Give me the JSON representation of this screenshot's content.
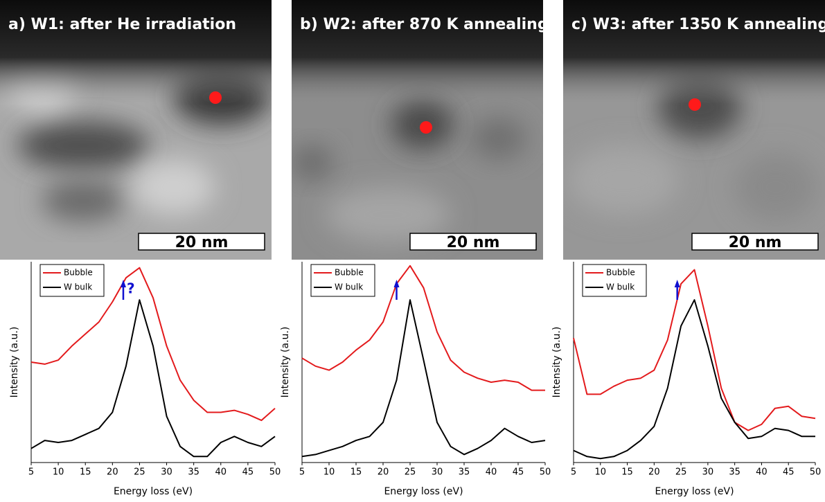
{
  "chart_data": [
    {
      "type": "line",
      "title": "a) W1: after He irradiation",
      "scale_bar": "20 nm",
      "annotation": "?",
      "x_label": "Energy loss (eV)",
      "y_label": "Intensity (a.u.)",
      "legend": "upper left",
      "x": [
        5,
        7.5,
        10,
        12.5,
        15,
        17.5,
        20,
        22.5,
        25,
        27.5,
        30,
        32.5,
        35,
        37.5,
        40,
        42.5,
        45,
        47.5,
        50
      ],
      "xlim": [
        5,
        50
      ],
      "xticks": [
        5,
        10,
        15,
        20,
        25,
        30,
        35,
        40,
        45,
        50
      ],
      "ylim": [
        0,
        1
      ],
      "series": [
        {
          "name": "Bubble",
          "color": "#e31a1c",
          "values": [
            0.5,
            0.49,
            0.51,
            0.58,
            0.64,
            0.7,
            0.8,
            0.92,
            0.97,
            0.82,
            0.58,
            0.41,
            0.31,
            0.25,
            0.25,
            0.26,
            0.24,
            0.21,
            0.27
          ]
        },
        {
          "name": "W bulk",
          "color": "#000000",
          "values": [
            0.07,
            0.11,
            0.1,
            0.11,
            0.14,
            0.17,
            0.25,
            0.48,
            0.81,
            0.58,
            0.23,
            0.08,
            0.03,
            0.03,
            0.1,
            0.13,
            0.1,
            0.08,
            0.13
          ]
        }
      ]
    },
    {
      "type": "line",
      "title": "b) W2: after 870 K annealing",
      "scale_bar": "20 nm",
      "x_label": "Energy loss (eV)",
      "y_label": "Intensity (a.u.)",
      "legend": "upper left",
      "x": [
        5,
        7.5,
        10,
        12.5,
        15,
        17.5,
        20,
        22.5,
        25,
        27.5,
        30,
        32.5,
        35,
        37.5,
        40,
        42.5,
        45,
        47.5,
        50
      ],
      "xlim": [
        5,
        50
      ],
      "xticks": [
        5,
        10,
        15,
        20,
        25,
        30,
        35,
        40,
        45,
        50
      ],
      "ylim": [
        0,
        1
      ],
      "series": [
        {
          "name": "Bubble",
          "color": "#e31a1c",
          "values": [
            0.52,
            0.48,
            0.46,
            0.5,
            0.56,
            0.61,
            0.7,
            0.89,
            0.98,
            0.87,
            0.65,
            0.51,
            0.45,
            0.42,
            0.4,
            0.41,
            0.4,
            0.36,
            0.36
          ]
        },
        {
          "name": "W bulk",
          "color": "#000000",
          "values": [
            0.03,
            0.04,
            0.06,
            0.08,
            0.11,
            0.13,
            0.2,
            0.41,
            0.81,
            0.51,
            0.2,
            0.08,
            0.04,
            0.07,
            0.11,
            0.17,
            0.13,
            0.1,
            0.11
          ]
        }
      ]
    },
    {
      "type": "line",
      "title": "c) W3: after 1350 K annealing",
      "scale_bar": "20 nm",
      "x_label": "Energy loss (eV)",
      "y_label": "Intensity (a.u.)",
      "legend": "upper left",
      "x": [
        5,
        7.5,
        10,
        12.5,
        15,
        17.5,
        20,
        22.5,
        25,
        27.5,
        30,
        32.5,
        35,
        37.5,
        40,
        42.5,
        45,
        47.5,
        50
      ],
      "xlim": [
        5,
        50
      ],
      "xticks": [
        5,
        10,
        15,
        20,
        25,
        30,
        35,
        40,
        45,
        50
      ],
      "ylim": [
        0,
        1
      ],
      "series": [
        {
          "name": "Bubble",
          "color": "#e31a1c",
          "values": [
            0.62,
            0.34,
            0.34,
            0.38,
            0.41,
            0.42,
            0.46,
            0.61,
            0.89,
            0.96,
            0.68,
            0.37,
            0.2,
            0.16,
            0.19,
            0.27,
            0.28,
            0.23,
            0.22
          ]
        },
        {
          "name": "W bulk",
          "color": "#000000",
          "values": [
            0.06,
            0.03,
            0.02,
            0.03,
            0.06,
            0.11,
            0.18,
            0.37,
            0.68,
            0.81,
            0.58,
            0.32,
            0.2,
            0.12,
            0.13,
            0.17,
            0.16,
            0.13,
            0.13
          ]
        }
      ]
    }
  ]
}
